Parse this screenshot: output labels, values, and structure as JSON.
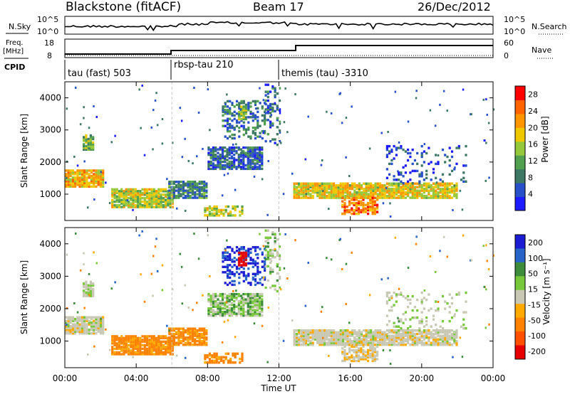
{
  "header": {
    "title": "Blackstone (fitACF)",
    "beam": "Beam 17",
    "date": "26/Dec/2012"
  },
  "noise_panel": {
    "left_label": "N.Sky",
    "left_ticks": [
      "10^5",
      "10^0"
    ],
    "right_label": "N.Search",
    "right_ticks": [
      "10^5",
      "10^0"
    ]
  },
  "freq_panel": {
    "left_label_1": "Freq.",
    "left_label_2": "[MHz]",
    "left_ticks": [
      "18",
      "8"
    ],
    "right_label": "Nave",
    "right_ticks": [
      "60",
      "0"
    ]
  },
  "cpid": {
    "label": "CPID",
    "segments": [
      {
        "start_hour": 0,
        "text": "tau (fast) 503"
      },
      {
        "start_hour": 6,
        "text": "rbsp-tau 210"
      },
      {
        "start_hour": 12,
        "text": "themis (tau) -3310"
      }
    ]
  },
  "colors": {
    "power_scale": [
      "#1c1cff",
      "#2850c8",
      "#3c7864",
      "#50a050",
      "#96c83c",
      "#f0c800",
      "#ff9600",
      "#ff6400",
      "#ff0000"
    ],
    "velocity_scale": [
      "#1c1cd2",
      "#2864c8",
      "#3c8c3c",
      "#78c83c",
      "#c8c8b4",
      "#ffaa00",
      "#ff8200",
      "#ff5000",
      "#e60000"
    ]
  },
  "chart_data": [
    {
      "type": "heatmap",
      "name_shown": "Power",
      "ylabel": "Slant Range [km]",
      "xlabel": "Time UT",
      "x_ticks": [
        "00:00",
        "04:00",
        "08:00",
        "12:00",
        "16:00",
        "20:00",
        "00:00"
      ],
      "y_ticks": [
        1000,
        2000,
        3000,
        4000
      ],
      "xlim_hours": [
        0,
        24
      ],
      "ylim_km": [
        180,
        4500
      ],
      "colorbar_label": "Power [dB]",
      "colorbar_ticks": [
        "4",
        "8",
        "12",
        "16",
        "20",
        "24",
        "28"
      ],
      "colorbar_range": [
        0,
        30
      ]
    },
    {
      "type": "heatmap",
      "name_shown": "Velocity",
      "ylabel": "Slant Range [km]",
      "xlabel": "Time UT",
      "x_ticks": [
        "00:00",
        "04:00",
        "08:00",
        "12:00",
        "16:00",
        "20:00",
        "00:00"
      ],
      "y_ticks": [
        1000,
        2000,
        3000,
        4000
      ],
      "xlim_hours": [
        0,
        24
      ],
      "ylim_km": [
        180,
        4500
      ],
      "colorbar_label": "Velocity [m s⁻¹]",
      "colorbar_ticks": [
        "200",
        "100",
        "50",
        "15",
        "-15",
        "-50",
        "-100",
        "-200"
      ],
      "colorbar_range": [
        -250,
        250
      ]
    }
  ]
}
